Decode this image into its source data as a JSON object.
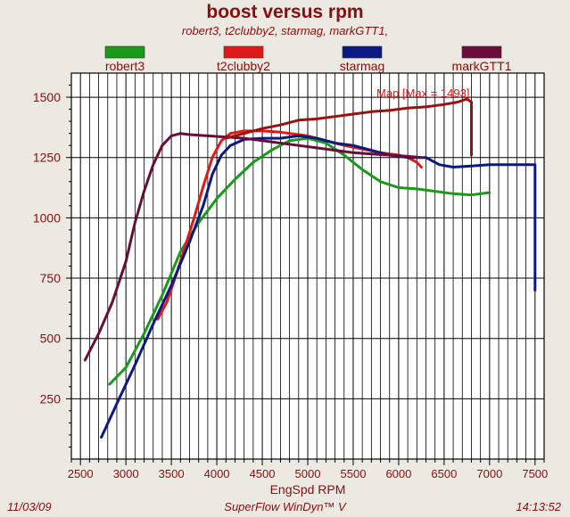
{
  "header": {
    "title": "boost versus rpm",
    "subtitle": "robert3, t2clubby2, starmag, markGTT1,"
  },
  "footer": {
    "date": "11/03/09",
    "software": "SuperFlow WinDyn™ V",
    "time": "14:13:52"
  },
  "chart_data": {
    "type": "line",
    "title": "boost versus rpm",
    "xlabel": "EngSpd  RPM",
    "ylabel": "",
    "xlim": [
      2400,
      7600
    ],
    "ylim": [
      0,
      1600
    ],
    "x_ticks": [
      2500,
      3000,
      3500,
      4000,
      4500,
      5000,
      5500,
      6000,
      6500,
      7000,
      7500
    ],
    "y_ticks": [
      250,
      500,
      750,
      1000,
      1250,
      1500
    ],
    "grid": true,
    "legend_position": "top",
    "annotation": {
      "text": "Map   [Max = 1493]",
      "x": 6800,
      "y": 1493
    },
    "series": [
      {
        "name": "robert3",
        "color": "#1a9a1a",
        "points": [
          [
            2820,
            310
          ],
          [
            3000,
            380
          ],
          [
            3200,
            520
          ],
          [
            3400,
            680
          ],
          [
            3600,
            860
          ],
          [
            3800,
            980
          ],
          [
            4000,
            1080
          ],
          [
            4200,
            1160
          ],
          [
            4400,
            1230
          ],
          [
            4600,
            1280
          ],
          [
            4800,
            1320
          ],
          [
            5000,
            1330
          ],
          [
            5200,
            1310
          ],
          [
            5400,
            1260
          ],
          [
            5600,
            1200
          ],
          [
            5800,
            1150
          ],
          [
            6000,
            1125
          ],
          [
            6200,
            1120
          ],
          [
            6400,
            1110
          ],
          [
            6600,
            1100
          ],
          [
            6800,
            1095
          ],
          [
            7000,
            1105
          ]
        ]
      },
      {
        "name": "t2clubby2",
        "color": "#e01818",
        "points": [
          [
            3350,
            580
          ],
          [
            3450,
            650
          ],
          [
            3550,
            760
          ],
          [
            3650,
            880
          ],
          [
            3750,
            1000
          ],
          [
            3850,
            1130
          ],
          [
            3950,
            1250
          ],
          [
            4050,
            1320
          ],
          [
            4150,
            1350
          ],
          [
            4300,
            1360
          ],
          [
            4500,
            1360
          ],
          [
            4700,
            1355
          ],
          [
            5000,
            1340
          ],
          [
            5200,
            1320
          ],
          [
            5400,
            1300
          ],
          [
            5600,
            1285
          ],
          [
            5800,
            1270
          ],
          [
            6000,
            1260
          ],
          [
            6100,
            1250
          ],
          [
            6200,
            1230
          ],
          [
            6250,
            1210
          ]
        ]
      },
      {
        "name": "starmag",
        "color": "#0a1a80",
        "points": [
          [
            2730,
            90
          ],
          [
            2900,
            230
          ],
          [
            3100,
            390
          ],
          [
            3300,
            560
          ],
          [
            3500,
            720
          ],
          [
            3700,
            900
          ],
          [
            3850,
            1050
          ],
          [
            3950,
            1180
          ],
          [
            4050,
            1260
          ],
          [
            4150,
            1300
          ],
          [
            4300,
            1325
          ],
          [
            4500,
            1330
          ],
          [
            4700,
            1330
          ],
          [
            4900,
            1340
          ],
          [
            5100,
            1330
          ],
          [
            5300,
            1310
          ],
          [
            5500,
            1300
          ],
          [
            5700,
            1280
          ],
          [
            5900,
            1260
          ],
          [
            6100,
            1250
          ],
          [
            6300,
            1250
          ],
          [
            6450,
            1220
          ],
          [
            6600,
            1210
          ],
          [
            6800,
            1215
          ],
          [
            7000,
            1220
          ],
          [
            7200,
            1220
          ],
          [
            7400,
            1220
          ],
          [
            7500,
            1220
          ],
          [
            7500,
            700
          ]
        ]
      },
      {
        "name": "markGTT1",
        "color": "#6a0c3a",
        "points": [
          [
            2550,
            410
          ],
          [
            2700,
            520
          ],
          [
            2850,
            650
          ],
          [
            3000,
            820
          ],
          [
            3100,
            980
          ],
          [
            3200,
            1110
          ],
          [
            3300,
            1220
          ],
          [
            3400,
            1300
          ],
          [
            3500,
            1340
          ],
          [
            3600,
            1350
          ],
          [
            3700,
            1345
          ],
          [
            3900,
            1340
          ],
          [
            4100,
            1335
          ],
          [
            4300,
            1330
          ],
          [
            4500,
            1320
          ],
          [
            4700,
            1310
          ],
          [
            4900,
            1300
          ],
          [
            5100,
            1290
          ],
          [
            5300,
            1280
          ],
          [
            5500,
            1270
          ],
          [
            5700,
            1265
          ],
          [
            5900,
            1260
          ],
          [
            6100,
            1255
          ],
          [
            6250,
            1250
          ]
        ]
      },
      {
        "name": "Map",
        "color": "#9c1010",
        "legend": false,
        "points": [
          [
            4100,
            1330
          ],
          [
            4300,
            1350
          ],
          [
            4500,
            1370
          ],
          [
            4700,
            1385
          ],
          [
            4900,
            1405
          ],
          [
            5100,
            1410
          ],
          [
            5300,
            1420
          ],
          [
            5500,
            1430
          ],
          [
            5700,
            1440
          ],
          [
            5900,
            1445
          ],
          [
            6100,
            1455
          ],
          [
            6300,
            1460
          ],
          [
            6500,
            1470
          ],
          [
            6650,
            1480
          ],
          [
            6750,
            1493
          ],
          [
            6800,
            1480
          ],
          [
            6800,
            1260
          ]
        ]
      }
    ]
  }
}
